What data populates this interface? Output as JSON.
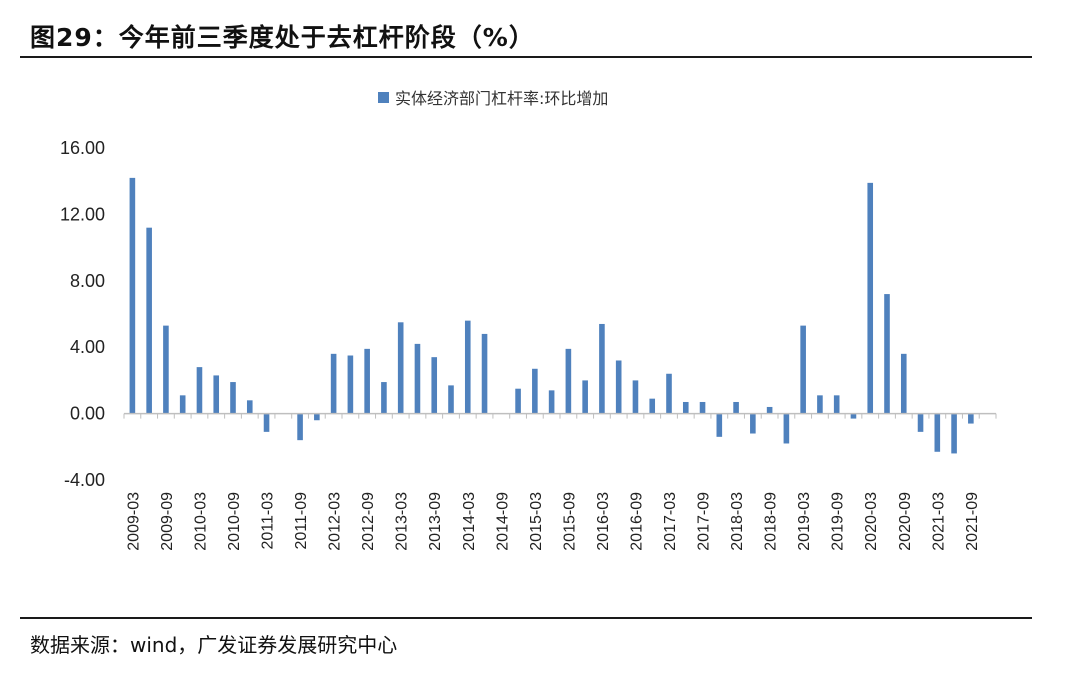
{
  "figure": {
    "title": "图29：今年前三季度处于去杠杆阶段（%）",
    "source": "数据来源：wind，广发证券发展研究中心"
  },
  "colors": {
    "bar": "#4F81BD",
    "axis": "#BFBFBF",
    "rule": "#1a1a1a"
  },
  "chart_data": {
    "type": "bar",
    "title": "",
    "xlabel": "",
    "ylabel": "",
    "legend": "实体经济部门杠杆率:环比增加",
    "legend_position": "top-center",
    "ylim": [
      -4,
      16
    ],
    "yticks": [
      16,
      12,
      8,
      4,
      0,
      -4
    ],
    "ytick_labels": [
      "16.00",
      "12.00",
      "8.00",
      "4.00",
      "0.00",
      "-4.00"
    ],
    "xtick_labels": [
      "2009-03",
      "2009-09",
      "2010-03",
      "2010-09",
      "2011-03",
      "2011-09",
      "2012-03",
      "2012-09",
      "2013-03",
      "2013-09",
      "2014-03",
      "2014-09",
      "2015-03",
      "2015-09",
      "2016-03",
      "2016-09",
      "2017-03",
      "2017-09",
      "2018-03",
      "2018-09",
      "2019-03",
      "2019-09",
      "2020-03",
      "2020-09",
      "2021-03",
      "2021-09"
    ],
    "categories": [
      "2009-03",
      "2009-06",
      "2009-09",
      "2009-12",
      "2010-03",
      "2010-06",
      "2010-09",
      "2010-12",
      "2011-03",
      "2011-06",
      "2011-09",
      "2011-12",
      "2012-03",
      "2012-06",
      "2012-09",
      "2012-12",
      "2013-03",
      "2013-06",
      "2013-09",
      "2013-12",
      "2014-03",
      "2014-06",
      "2014-09",
      "2014-12",
      "2015-03",
      "2015-06",
      "2015-09",
      "2015-12",
      "2016-03",
      "2016-06",
      "2016-09",
      "2016-12",
      "2017-03",
      "2017-06",
      "2017-09",
      "2017-12",
      "2018-03",
      "2018-06",
      "2018-09",
      "2018-12",
      "2019-03",
      "2019-06",
      "2019-09",
      "2019-12",
      "2020-03",
      "2020-06",
      "2020-09",
      "2020-12",
      "2021-03",
      "2021-06",
      "2021-09",
      "2021-12"
    ],
    "values": [
      14.2,
      11.2,
      5.3,
      1.1,
      2.8,
      2.3,
      1.9,
      0.8,
      -1.1,
      0.0,
      -1.6,
      -0.4,
      3.6,
      3.5,
      3.9,
      1.9,
      5.5,
      4.2,
      3.4,
      1.7,
      5.6,
      4.8,
      0.0,
      1.5,
      2.7,
      1.4,
      3.9,
      2.0,
      5.4,
      3.2,
      2.0,
      0.9,
      2.4,
      0.7,
      0.7,
      -1.4,
      0.7,
      -1.2,
      0.4,
      -1.8,
      5.3,
      1.1,
      1.1,
      -0.3,
      13.9,
      7.2,
      3.6,
      -1.1,
      -2.3,
      -2.4,
      -0.6,
      0.0
    ]
  }
}
